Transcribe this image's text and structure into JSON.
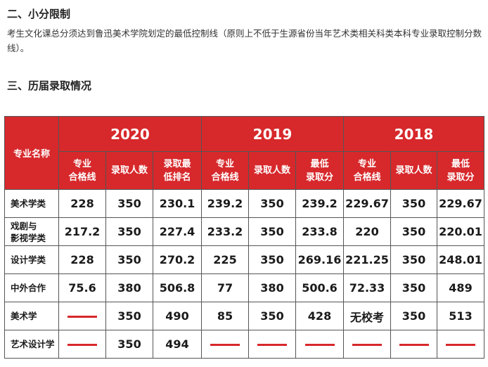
{
  "sections": {
    "quota_title": "二、小分限制",
    "quota_text": "考生文化课总分须达到鲁迅美术学院划定的最低控制线（原则上不低于生源省份当年艺术类相关科类本科专业录取控制分数线）。",
    "history_title": "三、历届录取情况"
  },
  "table": {
    "major_header": "专业名称",
    "years": [
      "2020",
      "2019",
      "2018"
    ],
    "sub_headers": {
      "y2020": [
        "专业\n合格线",
        "录取人数",
        "录取最\n低排名"
      ],
      "y2019": [
        "专业\n合格线",
        "录取人数",
        "最低\n录取分"
      ],
      "y2018": [
        "专业\n合格线",
        "录取人数",
        "最低\n录取分"
      ]
    },
    "rows": [
      {
        "major": "美术学类",
        "cells": [
          "228",
          "350",
          "230.1",
          "239.2",
          "350",
          "239.2",
          "229.67",
          "350",
          "229.67"
        ]
      },
      {
        "major": "戏剧与\n影视学类",
        "cells": [
          "217.2",
          "350",
          "227.4",
          "233.2",
          "350",
          "233.8",
          "220",
          "350",
          "220.01"
        ]
      },
      {
        "major": "设计学类",
        "cells": [
          "228",
          "350",
          "270.2",
          "225",
          "350",
          "269.16",
          "221.25",
          "350",
          "248.01"
        ]
      },
      {
        "major": "中外合作",
        "cells": [
          "75.6",
          "380",
          "506.8",
          "77",
          "380",
          "500.6",
          "72.33",
          "350",
          "489"
        ]
      },
      {
        "major": "美术学",
        "cells": [
          "—",
          "350",
          "490",
          "85",
          "350",
          "428",
          "无校考",
          "350",
          "513"
        ]
      },
      {
        "major": "艺术设计学",
        "cells": [
          "—",
          "350",
          "494",
          "—",
          "—",
          "—",
          "—",
          "—",
          "—"
        ]
      }
    ]
  },
  "colors": {
    "header_bg": "#d7282b",
    "header_text": "#ffffff",
    "dash": "#d7282b"
  }
}
